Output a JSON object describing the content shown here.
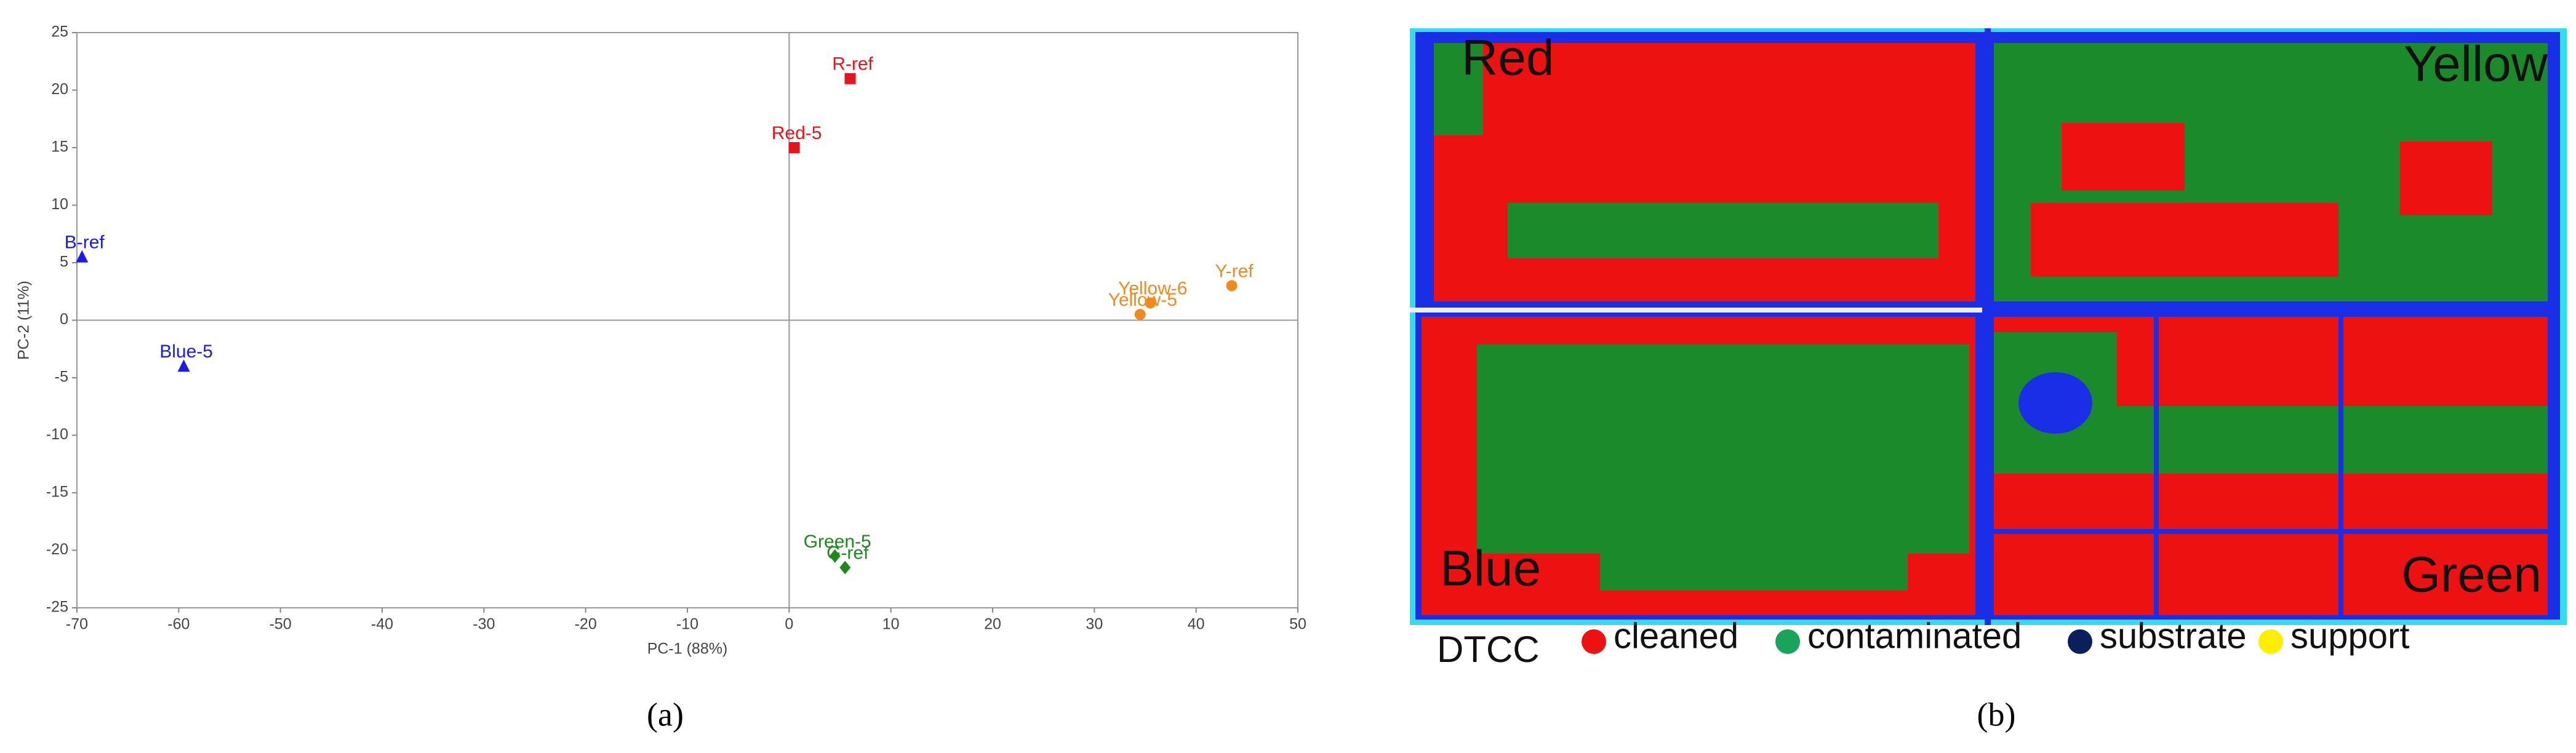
{
  "chart_data": {
    "type": "scatter",
    "xlabel": "PC-1 (88%)",
    "ylabel": "PC-2 (11%)",
    "xlim": [
      -70,
      50
    ],
    "xticks": [
      -70,
      -60,
      -50,
      -40,
      -30,
      -20,
      -10,
      0,
      10,
      20,
      30,
      40,
      50
    ],
    "ylim": [
      -25,
      25
    ],
    "yticks": [
      -25,
      -20,
      -15,
      -10,
      -5,
      0,
      5,
      10,
      15,
      20,
      25
    ],
    "zero_lines": true,
    "series": [
      {
        "color": "#e8141c",
        "marker": "square",
        "labels": [
          "R-ref",
          "Red-5"
        ],
        "x": [
          6,
          0.5
        ],
        "y": [
          21,
          15
        ]
      },
      {
        "color": "#1a1aee",
        "marker": "triangle",
        "labels": [
          "B-ref",
          "Blue-5"
        ],
        "x": [
          -69.5,
          -59.5
        ],
        "y": [
          5.5,
          -4
        ]
      },
      {
        "color": "#f08a1c",
        "marker": "circle",
        "labels": [
          "Yellow-6",
          "Yellow-5",
          "Y-ref"
        ],
        "x": [
          35.5,
          34.5,
          43.5
        ],
        "y": [
          1.5,
          0.5,
          3
        ]
      },
      {
        "color": "#1e8a1e",
        "marker": "diamond",
        "labels": [
          "Green-5",
          "G-ref"
        ],
        "x": [
          4.5,
          5.5
        ],
        "y": [
          -20.5,
          -21.5
        ]
      }
    ],
    "caption": "(a)"
  },
  "panel_b": {
    "quadrant_labels": [
      "Red",
      "Yellow",
      "Blue",
      "Green"
    ],
    "legend_title": "DTCC",
    "legend": [
      {
        "label": "cleaned",
        "color": "#ee1111"
      },
      {
        "label": "contaminated",
        "color": "#1aa35a"
      },
      {
        "label": "substrate",
        "color": "#0a1f5c"
      },
      {
        "label": "support",
        "color": "#ffee00"
      }
    ],
    "caption": "(b)"
  }
}
